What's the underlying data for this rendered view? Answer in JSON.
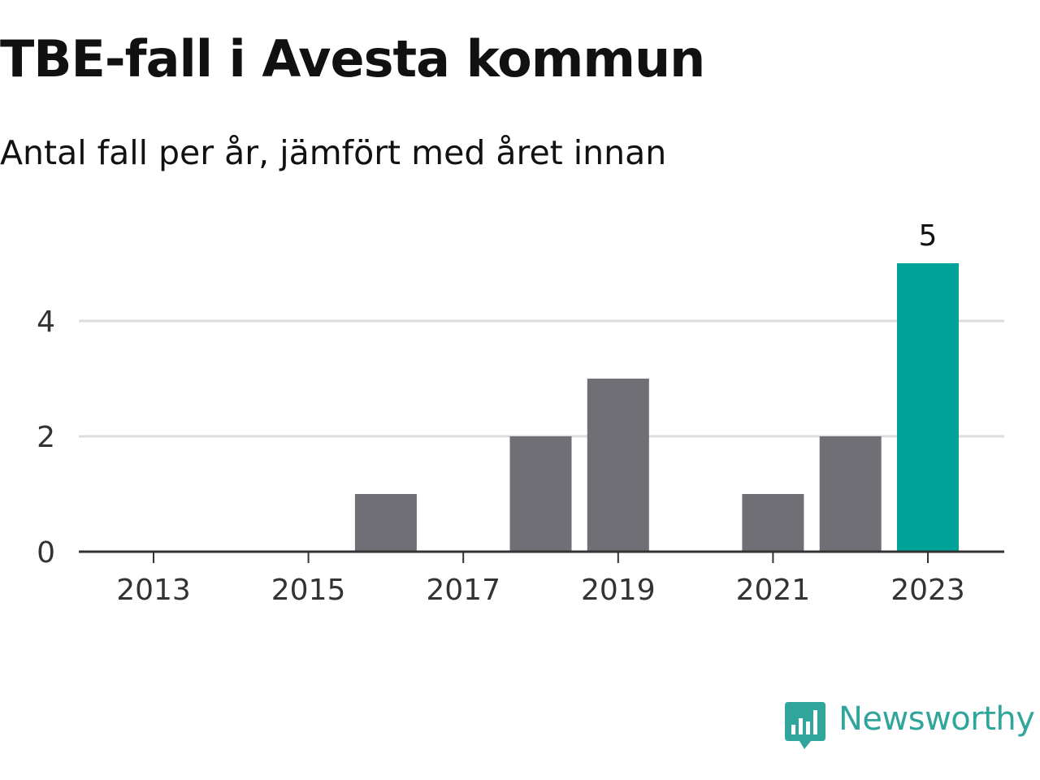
{
  "chart_data": {
    "type": "bar",
    "title": "TBE-fall i Avesta kommun",
    "subtitle": "Antal fall per år, jämfört med året innan",
    "categories": [
      "2013",
      "2014",
      "2015",
      "2016",
      "2017",
      "2018",
      "2019",
      "2020",
      "2021",
      "2022",
      "2023"
    ],
    "values": [
      0,
      0,
      0,
      1,
      0,
      2,
      3,
      0,
      1,
      2,
      5
    ],
    "x_tick_labels": [
      "2013",
      "2015",
      "2017",
      "2019",
      "2021",
      "2023"
    ],
    "y_ticks": [
      0,
      2,
      4
    ],
    "ylim": [
      0,
      5
    ],
    "xlabel": "",
    "ylabel": "",
    "grid": true,
    "highlight": {
      "category": "2023",
      "label": "5"
    },
    "colors": {
      "bar": "#706f75",
      "highlight": "#00a39a",
      "grid": "#dddddd",
      "axis": "#333333",
      "tick_text": "#333333"
    }
  },
  "logo": {
    "text": "Newsworthy",
    "icon": "newsworthy-chart-bubble-icon",
    "color": "#2fa59c"
  }
}
